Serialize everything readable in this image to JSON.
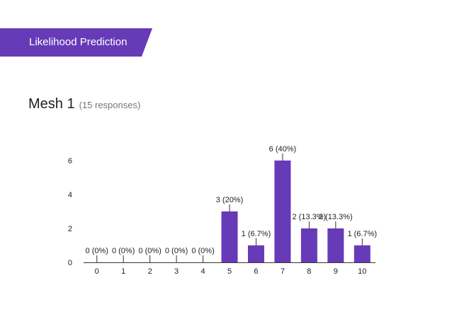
{
  "section": {
    "title": "Likelihood Prediction"
  },
  "question": {
    "title": "Mesh 1",
    "responses": "(15 responses)"
  },
  "colors": {
    "accent": "#673ab7",
    "bar": "#673ab7",
    "axis": "#333333",
    "tick": "#222222"
  },
  "chart_data": {
    "type": "bar",
    "title": "",
    "xlabel": "",
    "ylabel": "",
    "categories": [
      "0",
      "1",
      "2",
      "3",
      "4",
      "5",
      "6",
      "7",
      "8",
      "9",
      "10"
    ],
    "values": [
      0,
      0,
      0,
      0,
      0,
      3,
      1,
      6,
      2,
      2,
      1
    ],
    "data_labels": [
      "0 (0%)",
      "0 (0%)",
      "0 (0%)",
      "0 (0%)",
      "0 (0%)",
      "3 (20%)",
      "1 (6.7%)",
      "6 (40%)",
      "2 (13.3%)",
      "2 (13.3%)",
      "1 (6.7%)"
    ],
    "y_ticks": [
      0,
      2,
      4,
      6
    ],
    "ylim": [
      0,
      6
    ],
    "grid": false,
    "legend": "none"
  }
}
